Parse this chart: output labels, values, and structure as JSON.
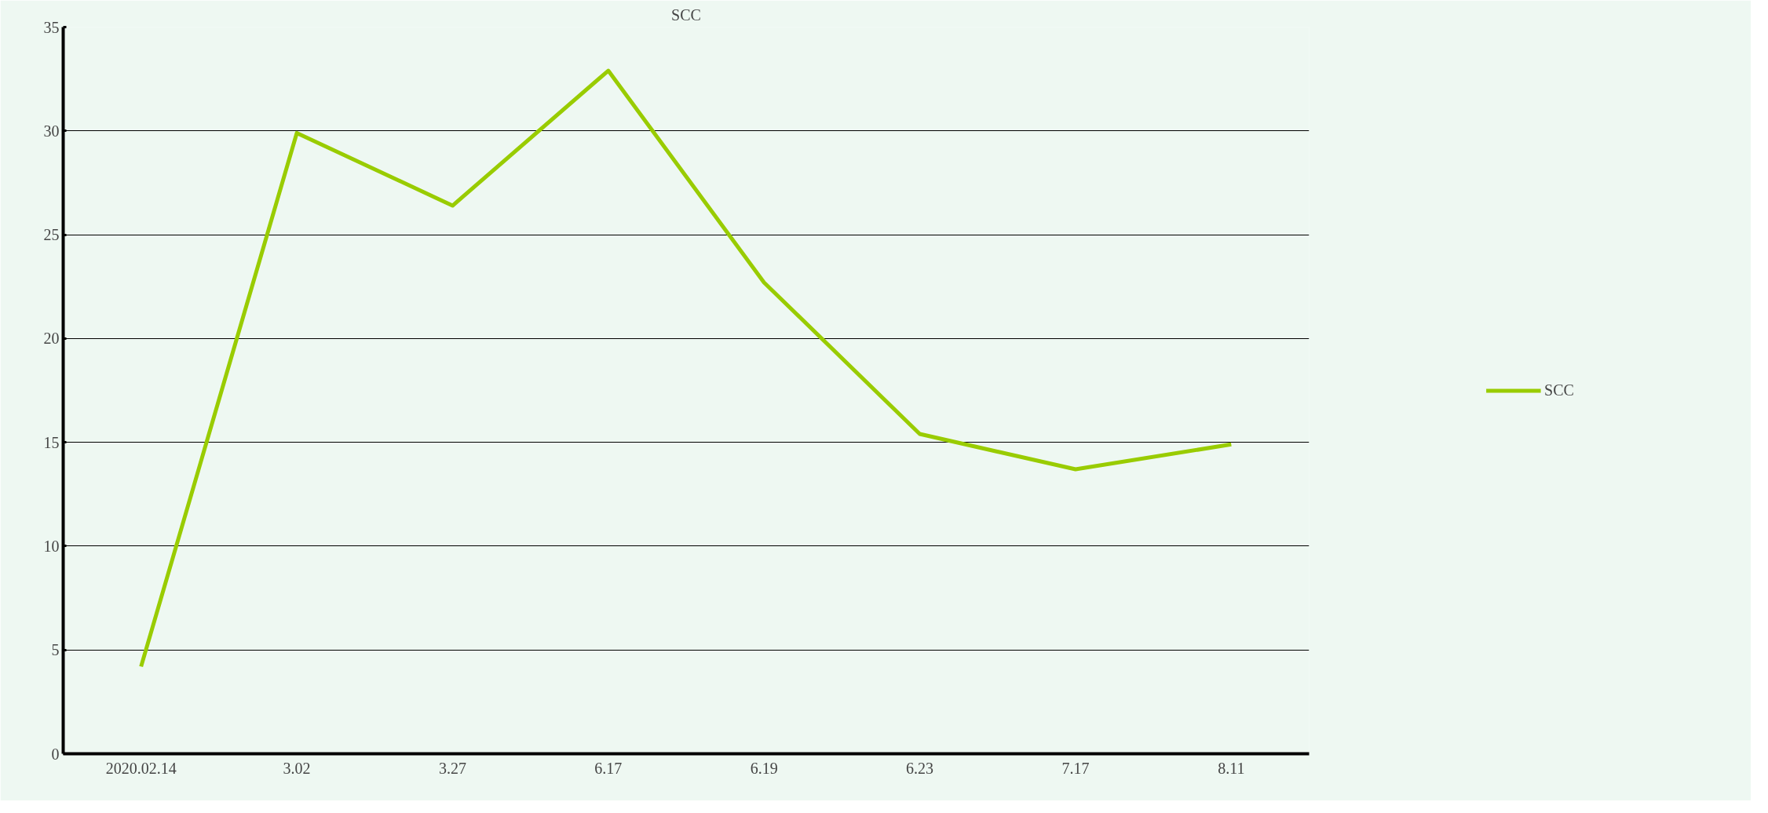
{
  "chart_data": {
    "type": "line",
    "title": "SCC",
    "categories": [
      "2020.02.14",
      "3.02",
      "3.27",
      "6.17",
      "6.19",
      "6.23",
      "7.17",
      "8.11"
    ],
    "series": [
      {
        "name": "SCC",
        "color": "#99cc00",
        "values": [
          4.2,
          29.9,
          26.4,
          32.9,
          22.7,
          15.4,
          13.7,
          14.9
        ]
      }
    ],
    "ylim": [
      0,
      35
    ],
    "yticks": [
      0,
      5,
      10,
      15,
      20,
      25,
      30,
      35
    ],
    "grid": "y",
    "legend": "right",
    "marker": "none",
    "line_style": "solid"
  }
}
